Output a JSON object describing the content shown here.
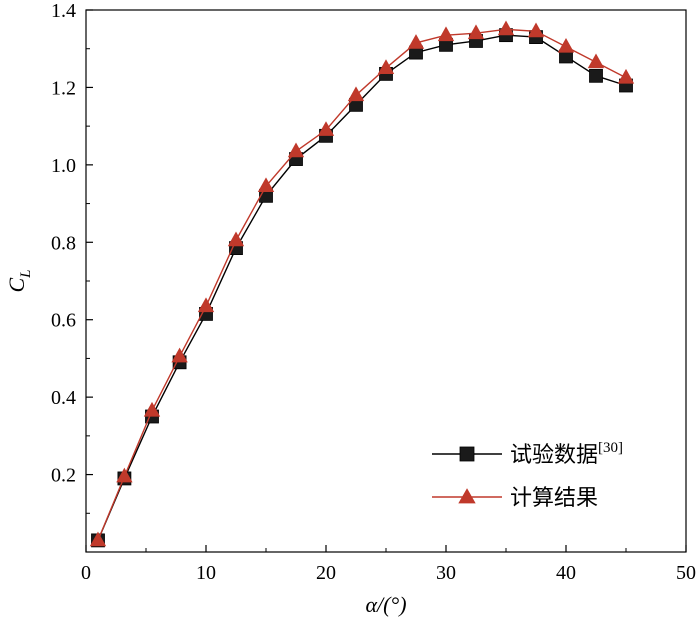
{
  "chart_data": {
    "type": "line",
    "title": "",
    "xlabel": "α/(°)",
    "ylabel": "C",
    "ylabel_sub": "L",
    "xlim": [
      0,
      50
    ],
    "ylim": [
      0,
      1.4
    ],
    "xticks": [
      0,
      10,
      20,
      30,
      40,
      50
    ],
    "yticks": [
      0.2,
      0.4,
      0.6,
      0.8,
      1.0,
      1.2,
      1.4
    ],
    "ytick_labels": [
      "0.2",
      "0.4",
      "0.6",
      "0.8",
      "1.0",
      "1.2",
      "1.4"
    ],
    "grid": false,
    "legend_position": "bottom-right",
    "series": [
      {
        "name": "试验数据",
        "name_ref": "[30]",
        "marker": "square",
        "color": "#000000",
        "marker_color": "#1a1a1a",
        "x": [
          1,
          3.2,
          5.5,
          7.8,
          10,
          12.5,
          15,
          17.5,
          20,
          22.5,
          25,
          27.5,
          30,
          32.5,
          35,
          37.5,
          40,
          42.5,
          45
        ],
        "y": [
          0.03,
          0.19,
          0.35,
          0.49,
          0.615,
          0.785,
          0.92,
          1.015,
          1.075,
          1.155,
          1.235,
          1.29,
          1.31,
          1.32,
          1.335,
          1.33,
          1.28,
          1.23,
          1.205
        ]
      },
      {
        "name": "计算结果",
        "marker": "triangle",
        "color": "#c0392b",
        "marker_color": "#c0392b",
        "x": [
          1,
          3.2,
          5.5,
          7.8,
          10,
          12.5,
          15,
          17.5,
          20,
          22.5,
          25,
          27.5,
          30,
          32.5,
          35,
          37.5,
          40,
          42.5,
          45
        ],
        "y": [
          0.03,
          0.195,
          0.365,
          0.505,
          0.635,
          0.805,
          0.945,
          1.035,
          1.09,
          1.18,
          1.25,
          1.315,
          1.335,
          1.34,
          1.35,
          1.345,
          1.305,
          1.265,
          1.225
        ]
      }
    ]
  }
}
